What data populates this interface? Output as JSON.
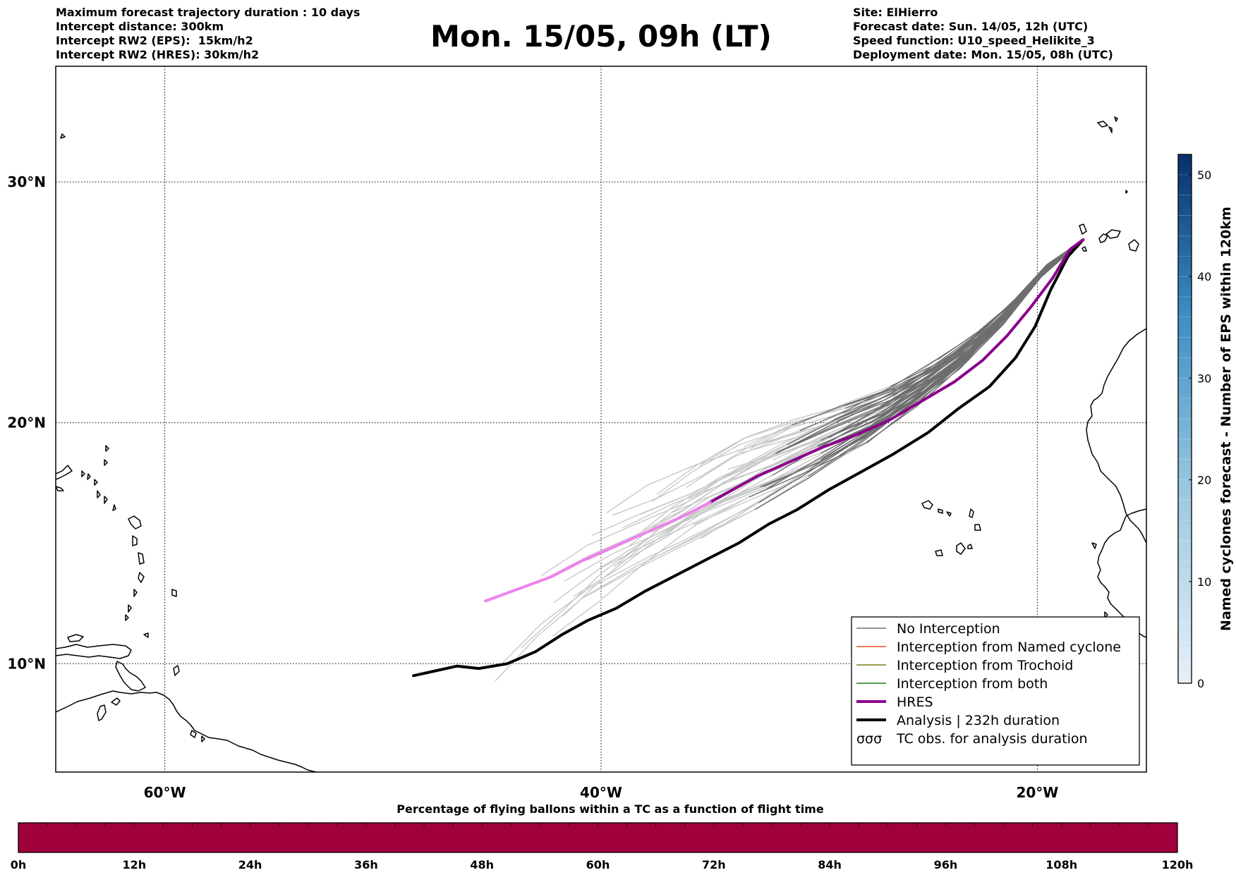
{
  "header": {
    "left": [
      "Maximum forecast trajectory duration : 10 days",
      "Intercept distance: 300km",
      "Intercept RW2 (EPS):  15km/h2",
      "Intercept RW2 (HRES): 30km/h2"
    ],
    "title": "Mon. 15/05, 09h (LT)",
    "right": [
      "Site: ElHierro",
      "Forecast date: Sun. 14/05, 12h (UTC)",
      "Speed function: U10_speed_Helikite_3",
      "Deployment date: Mon. 15/05, 08h (UTC)"
    ]
  },
  "map": {
    "lon_labels": [
      "60°W",
      "40°W",
      "20°W"
    ],
    "lat_labels": [
      "30°N",
      "20°N",
      "10°N"
    ],
    "lon_ticks": [
      -60,
      -40,
      -20
    ],
    "lat_ticks": [
      30,
      20,
      10
    ],
    "extent": {
      "lon_min": -65,
      "lon_max": -15,
      "lat_min": 5.5,
      "lat_max": 34.8
    },
    "launch_site": {
      "lon": -17.9,
      "lat": 27.6
    }
  },
  "legend": {
    "items": [
      {
        "label": "No Interception",
        "color": "#707070",
        "style": "thin"
      },
      {
        "label": "Interception from Named cyclone",
        "color": "#e8541c",
        "style": "thin"
      },
      {
        "label": "Interception from Trochoid",
        "color": "#7a7a1a",
        "style": "thin"
      },
      {
        "label": "Interception from both",
        "color": "#1a7a1a",
        "style": "thin"
      },
      {
        "label": "HRES",
        "color": "#8b008b",
        "style": "thick"
      },
      {
        "label": "Analysis | 232h duration",
        "color": "#000000",
        "style": "thick"
      },
      {
        "label": "TC obs. for analysis duration",
        "color": "#000000",
        "style": "symbol"
      }
    ]
  },
  "colorbar_right": {
    "label": "Named cyclones forecast - Number of EPS within 120km",
    "ticks": [
      "0",
      "10",
      "20",
      "30",
      "40",
      "50"
    ],
    "max": 52,
    "color_low": "#e6f0fa",
    "color_high": "#08306b"
  },
  "bottom_bar": {
    "title": "Percentage of flying ballons within a TC as a function of flight time",
    "ticks": [
      "0h",
      "12h",
      "24h",
      "36h",
      "48h",
      "60h",
      "72h",
      "84h",
      "96h",
      "108h",
      "120h"
    ],
    "fill_color": "#a0003c"
  },
  "tracks": {
    "hres": [
      [
        -17.9,
        27.6
      ],
      [
        -18.5,
        27.2
      ],
      [
        -19.3,
        26.0
      ],
      [
        -20.3,
        24.8
      ],
      [
        -21.4,
        23.6
      ],
      [
        -22.5,
        22.6
      ],
      [
        -23.8,
        21.7
      ],
      [
        -25.3,
        20.9
      ],
      [
        -26.8,
        20.1
      ],
      [
        -28.3,
        19.5
      ],
      [
        -29.8,
        19.0
      ],
      [
        -31.3,
        18.4
      ],
      [
        -32.8,
        17.8
      ],
      [
        -34.0,
        17.2
      ],
      [
        -35.0,
        16.7
      ],
      [
        -36.3,
        16.1
      ],
      [
        -37.8,
        15.5
      ],
      [
        -39.3,
        14.9
      ],
      [
        -40.8,
        14.3
      ],
      [
        -42.3,
        13.6
      ],
      [
        -43.8,
        13.1
      ],
      [
        -45.3,
        12.6
      ]
    ],
    "hres_pink_from_index": 14,
    "analysis": [
      [
        -17.9,
        27.6
      ],
      [
        -18.6,
        26.9
      ],
      [
        -19.4,
        25.5
      ],
      [
        -20.1,
        24.0
      ],
      [
        -21.0,
        22.7
      ],
      [
        -22.2,
        21.5
      ],
      [
        -23.6,
        20.6
      ],
      [
        -25.0,
        19.6
      ],
      [
        -26.6,
        18.7
      ],
      [
        -28.0,
        18.0
      ],
      [
        -29.6,
        17.2
      ],
      [
        -31.0,
        16.4
      ],
      [
        -32.3,
        15.8
      ],
      [
        -33.7,
        15.0
      ],
      [
        -35.0,
        14.4
      ],
      [
        -36.5,
        13.7
      ],
      [
        -38.0,
        13.0
      ],
      [
        -39.3,
        12.3
      ],
      [
        -40.6,
        11.8
      ],
      [
        -41.8,
        11.2
      ],
      [
        -43.0,
        10.5
      ],
      [
        -44.3,
        10.0
      ],
      [
        -45.6,
        9.8
      ],
      [
        -46.6,
        9.9
      ],
      [
        -47.6,
        9.7
      ],
      [
        -48.6,
        9.5
      ]
    ]
  }
}
